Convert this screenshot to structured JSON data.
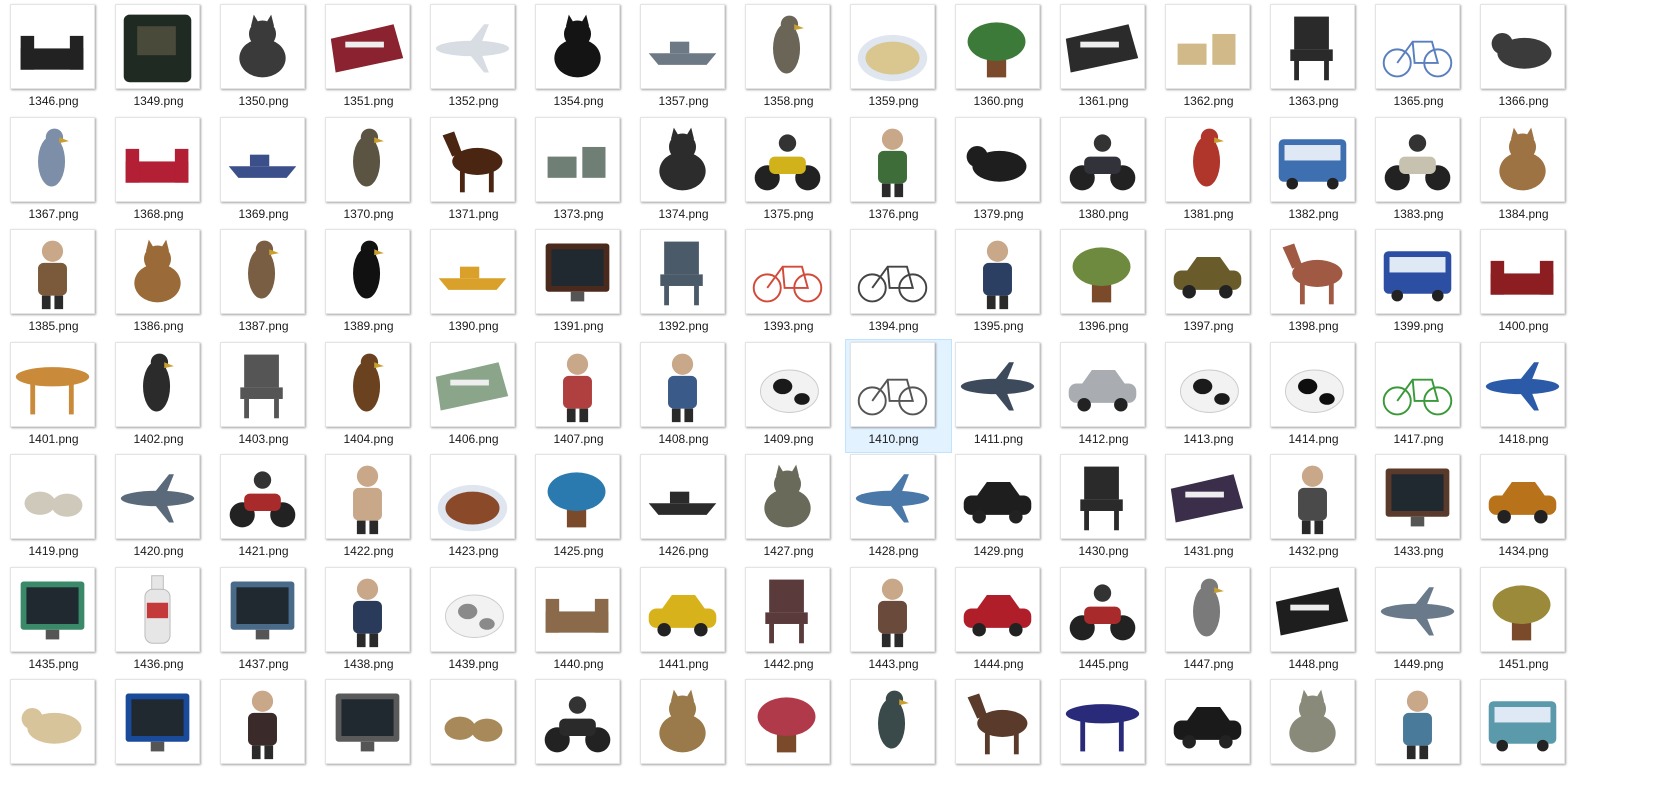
{
  "window": {
    "title": ""
  },
  "files": [
    {
      "name": "1346.png",
      "icon": "sofa",
      "color": "#222222"
    },
    {
      "name": "1349.png",
      "icon": "armchair",
      "color": "#1f2b22"
    },
    {
      "name": "1350.png",
      "icon": "cat",
      "color": "#3a3a3a"
    },
    {
      "name": "1351.png",
      "icon": "train",
      "color": "#8a2230"
    },
    {
      "name": "1352.png",
      "icon": "airplane",
      "color": "#d8dde3"
    },
    {
      "name": "1354.png",
      "icon": "cat",
      "color": "#141414"
    },
    {
      "name": "1357.png",
      "icon": "boat",
      "color": "#6d7a86"
    },
    {
      "name": "1358.png",
      "icon": "bird",
      "color": "#6b6557"
    },
    {
      "name": "1359.png",
      "icon": "food",
      "color": "#d9c78f"
    },
    {
      "name": "1360.png",
      "icon": "plant",
      "color": "#3c7a3a"
    },
    {
      "name": "1361.png",
      "icon": "train",
      "color": "#2b2b2b"
    },
    {
      "name": "1362.png",
      "icon": "box",
      "color": "#d2b98a"
    },
    {
      "name": "1363.png",
      "icon": "chair",
      "color": "#2a2a2a"
    },
    {
      "name": "1365.png",
      "icon": "bicycle",
      "color": "#5a7fbf"
    },
    {
      "name": "1366.png",
      "icon": "dog",
      "color": "#3b3b3b"
    },
    {
      "name": "1367.png",
      "icon": "bird",
      "color": "#7d8fa8"
    },
    {
      "name": "1368.png",
      "icon": "sofa",
      "color": "#b31f35"
    },
    {
      "name": "1369.png",
      "icon": "boat",
      "color": "#3b4f8a"
    },
    {
      "name": "1370.png",
      "icon": "bird",
      "color": "#5b5443"
    },
    {
      "name": "1371.png",
      "icon": "horse",
      "color": "#4a2511"
    },
    {
      "name": "1373.png",
      "icon": "box",
      "color": "#6f7f76"
    },
    {
      "name": "1374.png",
      "icon": "cat",
      "color": "#2c2c2c"
    },
    {
      "name": "1375.png",
      "icon": "motorbike",
      "color": "#d1b21a"
    },
    {
      "name": "1376.png",
      "icon": "person",
      "color": "#3f6d3a"
    },
    {
      "name": "1379.png",
      "icon": "dog",
      "color": "#1e1e1e"
    },
    {
      "name": "1380.png",
      "icon": "motorbike",
      "color": "#32323a"
    },
    {
      "name": "1381.png",
      "icon": "bird",
      "color": "#b0352a"
    },
    {
      "name": "1382.png",
      "icon": "bus",
      "color": "#3e6fb0"
    },
    {
      "name": "1383.png",
      "icon": "motorbike",
      "color": "#c7c2b0"
    },
    {
      "name": "1384.png",
      "icon": "cat",
      "color": "#9d7343"
    },
    {
      "name": "1385.png",
      "icon": "person",
      "color": "#7a5a3a"
    },
    {
      "name": "1386.png",
      "icon": "cat",
      "color": "#9a6b38"
    },
    {
      "name": "1387.png",
      "icon": "bird",
      "color": "#7a5e44"
    },
    {
      "name": "1389.png",
      "icon": "bird",
      "color": "#111111"
    },
    {
      "name": "1390.png",
      "icon": "boat",
      "color": "#d9a02a"
    },
    {
      "name": "1391.png",
      "icon": "tvmonitor",
      "color": "#4b2a1e"
    },
    {
      "name": "1392.png",
      "icon": "chair",
      "color": "#4a5a68"
    },
    {
      "name": "1393.png",
      "icon": "bicycle",
      "color": "#d24a3a"
    },
    {
      "name": "1394.png",
      "icon": "bicycle",
      "color": "#444444"
    },
    {
      "name": "1395.png",
      "icon": "person",
      "color": "#2b3f63"
    },
    {
      "name": "1396.png",
      "icon": "plant",
      "color": "#6e8a3e"
    },
    {
      "name": "1397.png",
      "icon": "car",
      "color": "#6a5b2b"
    },
    {
      "name": "1398.png",
      "icon": "horse",
      "color": "#a05a44"
    },
    {
      "name": "1399.png",
      "icon": "bus",
      "color": "#2d4fa3"
    },
    {
      "name": "1400.png",
      "icon": "sofa",
      "color": "#8c1e22"
    },
    {
      "name": "1401.png",
      "icon": "table",
      "color": "#c98a3a"
    },
    {
      "name": "1402.png",
      "icon": "bird",
      "color": "#2b2b2b"
    },
    {
      "name": "1403.png",
      "icon": "chair",
      "color": "#555555"
    },
    {
      "name": "1404.png",
      "icon": "bird",
      "color": "#6a4220"
    },
    {
      "name": "1406.png",
      "icon": "train",
      "color": "#8aa58a"
    },
    {
      "name": "1407.png",
      "icon": "person",
      "color": "#b04040"
    },
    {
      "name": "1408.png",
      "icon": "person",
      "color": "#3a5a8a"
    },
    {
      "name": "1409.png",
      "icon": "cow",
      "color": "#1a1a1a"
    },
    {
      "name": "1410.png",
      "icon": "bicycle",
      "color": "#555555"
    },
    {
      "name": "1411.png",
      "icon": "airplane",
      "color": "#3c4a5c"
    },
    {
      "name": "1412.png",
      "icon": "car",
      "color": "#a9adb2"
    },
    {
      "name": "1413.png",
      "icon": "cow",
      "color": "#1b1b1b"
    },
    {
      "name": "1414.png",
      "icon": "cow",
      "color": "#0e0e0e"
    },
    {
      "name": "1417.png",
      "icon": "bicycle",
      "color": "#3a9a3a"
    },
    {
      "name": "1418.png",
      "icon": "airplane",
      "color": "#2b5aa8"
    },
    {
      "name": "1419.png",
      "icon": "sheep",
      "color": "#cfc9bb"
    },
    {
      "name": "1420.png",
      "icon": "airplane",
      "color": "#5a6a7a"
    },
    {
      "name": "1421.png",
      "icon": "motorbike",
      "color": "#a82a2a"
    },
    {
      "name": "1422.png",
      "icon": "person",
      "color": "#c9a789"
    },
    {
      "name": "1423.png",
      "icon": "food",
      "color": "#8a4a2a"
    },
    {
      "name": "1425.png",
      "icon": "plant",
      "color": "#2a7ab0"
    },
    {
      "name": "1426.png",
      "icon": "boat",
      "color": "#2b2b2b"
    },
    {
      "name": "1427.png",
      "icon": "cat",
      "color": "#6a6a5a"
    },
    {
      "name": "1428.png",
      "icon": "airplane",
      "color": "#4a78a8"
    },
    {
      "name": "1429.png",
      "icon": "car",
      "color": "#1e1e1e"
    },
    {
      "name": "1430.png",
      "icon": "chair",
      "color": "#2a2a2a"
    },
    {
      "name": "1431.png",
      "icon": "train",
      "color": "#3a2e4a"
    },
    {
      "name": "1432.png",
      "icon": "person",
      "color": "#4a4a4a"
    },
    {
      "name": "1433.png",
      "icon": "tvmonitor",
      "color": "#5a3a2a"
    },
    {
      "name": "1434.png",
      "icon": "car",
      "color": "#b8721a"
    },
    {
      "name": "1435.png",
      "icon": "tvmonitor",
      "color": "#3a8a6a"
    },
    {
      "name": "1436.png",
      "icon": "bottle",
      "color": "#e6e6e6"
    },
    {
      "name": "1437.png",
      "icon": "tvmonitor",
      "color": "#4a6a8a"
    },
    {
      "name": "1438.png",
      "icon": "person",
      "color": "#2a3a5a"
    },
    {
      "name": "1439.png",
      "icon": "cow",
      "color": "#8a8a8a"
    },
    {
      "name": "1440.png",
      "icon": "sofa",
      "color": "#8a6a4a"
    },
    {
      "name": "1441.png",
      "icon": "car",
      "color": "#d8b21a"
    },
    {
      "name": "1442.png",
      "icon": "chair",
      "color": "#5a3a3a"
    },
    {
      "name": "1443.png",
      "icon": "person",
      "color": "#6a4a3a"
    },
    {
      "name": "1444.png",
      "icon": "car",
      "color": "#b01e2a"
    },
    {
      "name": "1445.png",
      "icon": "motorbike",
      "color": "#a82a2a"
    },
    {
      "name": "1447.png",
      "icon": "bird",
      "color": "#7a7a7a"
    },
    {
      "name": "1448.png",
      "icon": "train",
      "color": "#1e1e1e"
    },
    {
      "name": "1449.png",
      "icon": "airplane",
      "color": "#6a7a8a"
    },
    {
      "name": "1451.png",
      "icon": "plant",
      "color": "#9a8a3a"
    },
    {
      "name": "",
      "icon": "dog",
      "color": "#d8c49a"
    },
    {
      "name": "",
      "icon": "tvmonitor",
      "color": "#1a4a9a"
    },
    {
      "name": "",
      "icon": "person",
      "color": "#3a2a2a"
    },
    {
      "name": "",
      "icon": "tvmonitor",
      "color": "#5a5a5a"
    },
    {
      "name": "",
      "icon": "sheep",
      "color": "#a88a5a"
    },
    {
      "name": "",
      "icon": "motorbike",
      "color": "#2a2a2a"
    },
    {
      "name": "",
      "icon": "cat",
      "color": "#9a7a4a"
    },
    {
      "name": "",
      "icon": "plant",
      "color": "#b03a4a"
    },
    {
      "name": "",
      "icon": "bird",
      "color": "#3a4a4a"
    },
    {
      "name": "",
      "icon": "horse",
      "color": "#5a3a2a"
    },
    {
      "name": "",
      "icon": "table",
      "color": "#2a2a7a"
    },
    {
      "name": "",
      "icon": "car",
      "color": "#1a1a1a"
    },
    {
      "name": "",
      "icon": "cat",
      "color": "#8a8a7a"
    },
    {
      "name": "",
      "icon": "person",
      "color": "#4a7a9a"
    },
    {
      "name": "",
      "icon": "bus",
      "color": "#5a9aaa"
    }
  ],
  "selected_file": "1410.png"
}
